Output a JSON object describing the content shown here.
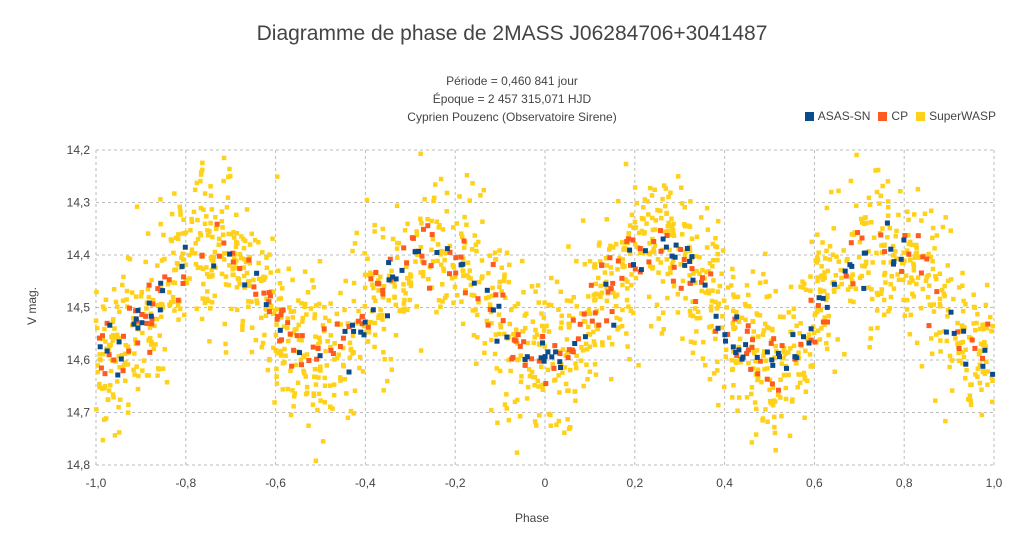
{
  "chart_data": {
    "type": "scatter",
    "title": "Diagramme de phase de 2MASS J06284706+3041487",
    "subtitle_lines": [
      "Période = 0,460 841 jour",
      "Époque = 2 457 315,071 HJD",
      "Cyprien Pouzenc (Observatoire Sirene)"
    ],
    "xlabel": "Phase",
    "ylabel": "V mag.",
    "xlim": [
      -1.0,
      1.0
    ],
    "ylim": [
      14.2,
      14.8
    ],
    "y_inverted": true,
    "grid": true,
    "legend_position": "top-right",
    "x_ticks": [
      "-1,0",
      "-0,8",
      "-0,6",
      "-0,4",
      "-0,2",
      "0",
      "0,2",
      "0,4",
      "0,6",
      "0,8",
      "1,0"
    ],
    "y_ticks": [
      "14,2",
      "14,3",
      "14,4",
      "14,5",
      "14,6",
      "14,7",
      "14,8"
    ],
    "light_curve_period_in_phase": 0.5,
    "light_curve_minima_mag": 14.6,
    "light_curve_maxima_mag": 14.38,
    "series": [
      {
        "name": "ASAS-SN",
        "color": "#0b4a8b",
        "scatter_mag": 0.035,
        "n_points": 130
      },
      {
        "name": "CP",
        "color": "#ff5a1f",
        "scatter_mag": 0.045,
        "n_points": 220
      },
      {
        "name": "SuperWASP",
        "color": "#ffd11a",
        "scatter_mag": 0.11,
        "n_points": 1700
      }
    ]
  }
}
